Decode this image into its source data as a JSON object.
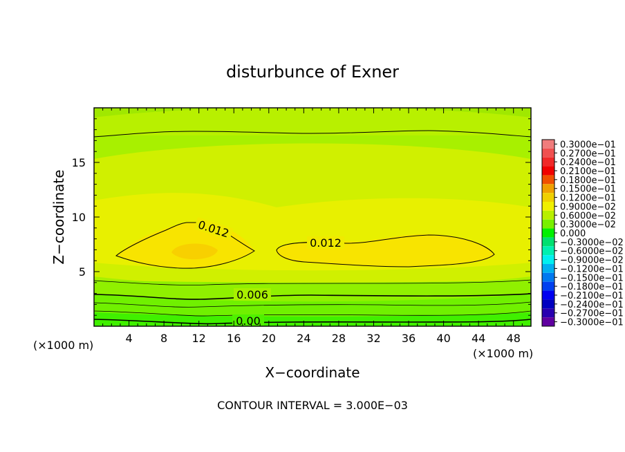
{
  "chart_data": {
    "type": "heatmap",
    "title": "disturbunce of Exner",
    "xlabel": "X−coordinate",
    "ylabel": "Z−coordinate",
    "x_unit": "(×1000 m)",
    "x_unit_right": "(×1000 m)",
    "footer": "CONTOUR INTERVAL = 3.000E−03",
    "xlim": [
      0,
      50
    ],
    "ylim": [
      0,
      20
    ],
    "x_ticks": [
      4,
      8,
      12,
      16,
      20,
      24,
      28,
      32,
      36,
      40,
      44,
      48
    ],
    "y_ticks": [
      5,
      10,
      15
    ],
    "contour_labels": [
      {
        "text": "0.012",
        "value": 0.012
      },
      {
        "text": "0.012",
        "value": 0.012
      },
      {
        "text": "0.006",
        "value": 0.006
      },
      {
        "text": "0.00",
        "value": 0.0
      }
    ],
    "colorbar": {
      "levels": [
        "0.3000e−01",
        "0.2700e−01",
        "0.2400e−01",
        "0.2100e−01",
        "0.1800e−01",
        "0.1500e−01",
        "0.1200e−01",
        "0.9000e−02",
        "0.6000e−02",
        "0.3000e−02",
        "0.000",
        "−0.3000e−02",
        "−0.6000e−02",
        "−0.9000e−02",
        "−0.1200e−01",
        "−0.1500e−01",
        "−0.1800e−01",
        "−0.2100e−01",
        "−0.2400e−01",
        "−0.2700e−01",
        "−0.3000e−01"
      ],
      "colors": [
        "#f07c7c",
        "#f05050",
        "#f02828",
        "#f00000",
        "#f05000",
        "#f0a000",
        "#f0d000",
        "#f0f000",
        "#b8f000",
        "#78f000",
        "#00f000",
        "#00e070",
        "#00f0b0",
        "#00f0f0",
        "#00b0f0",
        "#0078f0",
        "#0040f0",
        "#0000f0",
        "#0000c0",
        "#2800b0",
        "#6000a0"
      ]
    },
    "field_colors": {
      "level_0_003": "#a0f000",
      "level_0_006": "#c0f000",
      "level_0_009": "#e0f000",
      "level_0_012": "#f8f000",
      "level_0_015": "#f8d800",
      "level_0": "#30f000"
    }
  }
}
